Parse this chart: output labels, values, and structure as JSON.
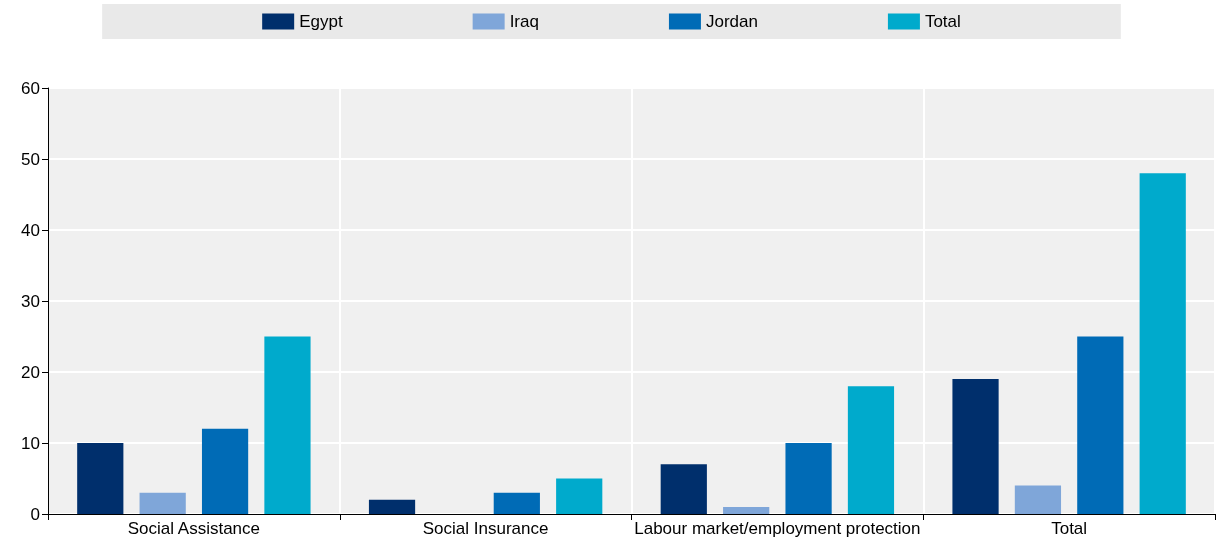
{
  "chart_data": {
    "type": "bar",
    "categories": [
      "Social Assistance",
      "Social Insurance",
      "Labour market/employment protection",
      "Total"
    ],
    "series": [
      {
        "name": "Egypt",
        "color": "#002f6c",
        "values": [
          10,
          2,
          7,
          19
        ]
      },
      {
        "name": "Iraq",
        "color": "#7fa6d9",
        "values": [
          3,
          0,
          1,
          4
        ]
      },
      {
        "name": "Jordan",
        "color": "#006bb6",
        "values": [
          12,
          3,
          10,
          25
        ]
      },
      {
        "name": "Total",
        "color": "#00aacc",
        "values": [
          25,
          5,
          18,
          48
        ]
      }
    ],
    "ylim": [
      0,
      60
    ],
    "yticks": [
      0,
      10,
      20,
      30,
      40,
      50,
      60
    ],
    "grid": true,
    "legend": "top"
  }
}
